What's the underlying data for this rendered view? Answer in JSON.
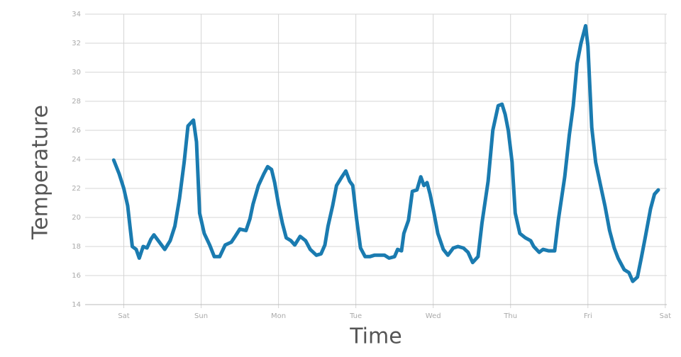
{
  "chart_data": {
    "type": "line",
    "xlabel": "Time",
    "ylabel": "Temperature",
    "x": [
      -0.13,
      -0.06,
      0,
      0.05,
      0.08,
      0.11,
      0.16,
      0.2,
      0.25,
      0.3,
      0.35,
      0.39,
      0.46,
      0.53,
      0.6,
      0.66,
      0.72,
      0.78,
      0.83,
      0.9,
      0.94,
      0.98,
      1.04,
      1.11,
      1.17,
      1.24,
      1.31,
      1.39,
      1.44,
      1.5,
      1.58,
      1.63,
      1.67,
      1.74,
      1.81,
      1.86,
      1.91,
      1.95,
      2.0,
      2.05,
      2.1,
      2.16,
      2.21,
      2.28,
      2.35,
      2.41,
      2.49,
      2.55,
      2.6,
      2.64,
      2.7,
      2.75,
      2.82,
      2.87,
      2.92,
      2.96,
      3.01,
      3.06,
      3.12,
      3.18,
      3.24,
      3.3,
      3.37,
      3.43,
      3.5,
      3.54,
      3.59,
      3.62,
      3.68,
      3.73,
      3.79,
      3.84,
      3.88,
      3.92,
      3.96,
      4.01,
      4.06,
      4.13,
      4.19,
      4.26,
      4.32,
      4.39,
      4.45,
      4.51,
      4.58,
      4.63,
      4.71,
      4.77,
      4.84,
      4.89,
      4.93,
      4.97,
      5.02,
      5.06,
      5.12,
      5.19,
      5.26,
      5.3,
      5.37,
      5.42,
      5.49,
      5.57,
      5.62,
      5.7,
      5.76,
      5.81,
      5.86,
      5.91,
      5.97,
      6.0,
      6.05,
      6.1,
      6.16,
      6.22,
      6.28,
      6.34,
      6.39,
      6.47,
      6.53,
      6.58,
      6.64,
      6.69,
      6.74,
      6.81,
      6.86,
      6.91
    ],
    "series": [
      {
        "name": "Temperature",
        "color": "#1a7bb0",
        "values": [
          23.95,
          23.0,
          22.0,
          20.8,
          19.4,
          18.0,
          17.8,
          17.2,
          18.0,
          17.9,
          18.5,
          18.8,
          18.3,
          17.8,
          18.4,
          19.4,
          21.3,
          23.8,
          26.3,
          26.7,
          25.2,
          20.3,
          18.9,
          18.1,
          17.3,
          17.3,
          18.1,
          18.3,
          18.7,
          19.2,
          19.1,
          19.9,
          20.9,
          22.2,
          23.0,
          23.5,
          23.3,
          22.4,
          20.9,
          19.6,
          18.6,
          18.4,
          18.1,
          18.7,
          18.4,
          17.8,
          17.4,
          17.5,
          18.1,
          19.4,
          20.8,
          22.2,
          22.8,
          23.2,
          22.5,
          22.2,
          19.9,
          17.9,
          17.3,
          17.3,
          17.4,
          17.4,
          17.4,
          17.2,
          17.3,
          17.8,
          17.7,
          18.9,
          19.8,
          21.8,
          21.9,
          22.8,
          22.2,
          22.4,
          21.6,
          20.3,
          18.9,
          17.8,
          17.4,
          17.9,
          18.0,
          17.9,
          17.6,
          16.9,
          17.3,
          19.6,
          22.5,
          26.0,
          27.7,
          27.8,
          27.1,
          26.0,
          23.8,
          20.3,
          18.9,
          18.6,
          18.4,
          18.0,
          17.6,
          17.8,
          17.7,
          17.7,
          19.9,
          22.8,
          25.7,
          27.7,
          30.6,
          32.0,
          33.2,
          31.8,
          26.2,
          23.8,
          22.3,
          20.8,
          19.1,
          17.9,
          17.2,
          16.4,
          16.2,
          15.6,
          15.9,
          17.2,
          18.6,
          20.6,
          21.6,
          21.9
        ]
      }
    ],
    "xlim": [
      -0.5,
      7.02
    ],
    "xticks": [
      {
        "value": 0,
        "label": "Sat"
      },
      {
        "value": 1,
        "label": "Sun"
      },
      {
        "value": 2,
        "label": "Mon"
      },
      {
        "value": 3,
        "label": "Tue"
      },
      {
        "value": 4,
        "label": "Wed"
      },
      {
        "value": 5,
        "label": "Thu"
      },
      {
        "value": 6,
        "label": "Fri"
      },
      {
        "value": 7,
        "label": "Sat"
      }
    ],
    "ylim": [
      14,
      34
    ],
    "yticks": [
      14,
      16,
      18,
      20,
      22,
      24,
      26,
      28,
      30,
      32,
      34
    ],
    "grid": true
  }
}
